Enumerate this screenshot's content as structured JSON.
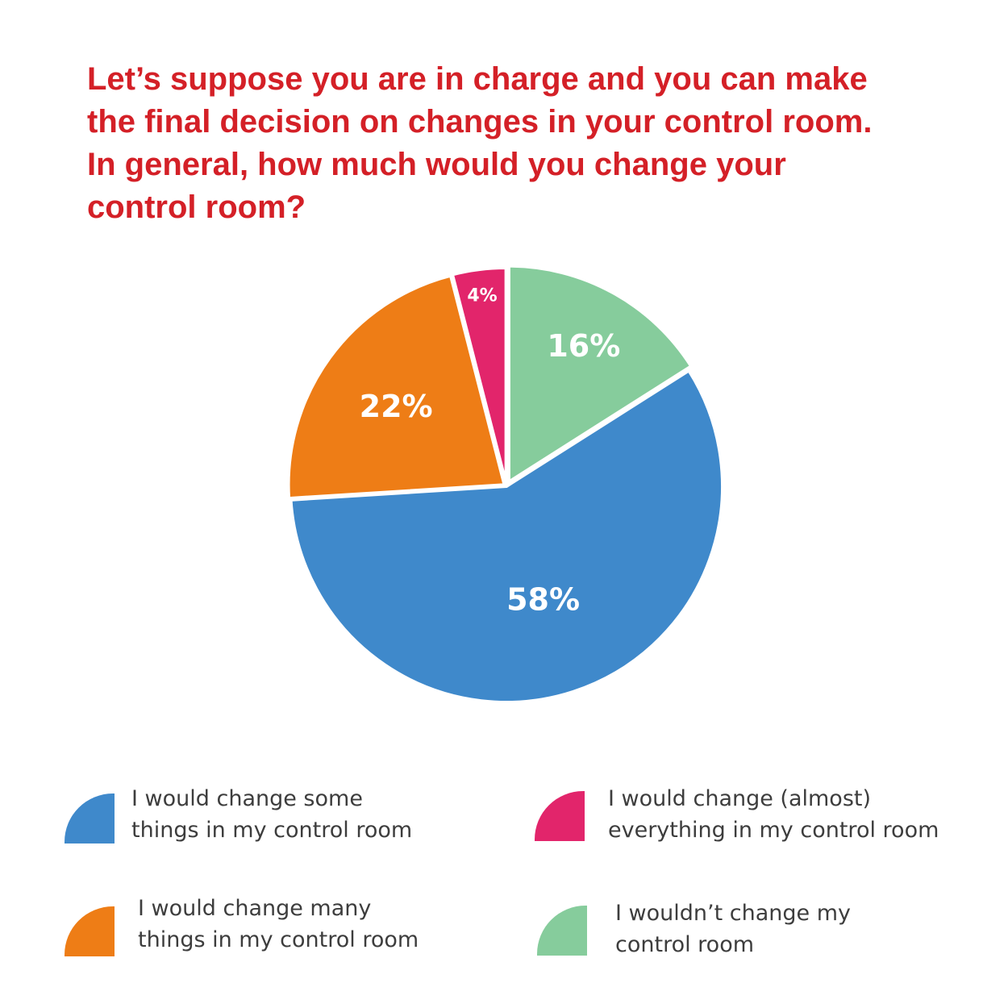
{
  "chart_data": {
    "type": "pie",
    "title_lines": [
      "Let’s suppose you are in charge and you can make",
      "the final decision on changes in your control room.",
      "In general, how much would you change your",
      "control room?"
    ],
    "slices": [
      {
        "label": "I wouldn’t change my control room",
        "label_lines": [
          "I wouldn’t change my",
          "control room"
        ],
        "value": 16,
        "value_label": "16%",
        "color": "#86cc9c"
      },
      {
        "label": "I would change some things in my control room",
        "label_lines": [
          "I would change some",
          "things in my control room"
        ],
        "value": 58,
        "value_label": "58%",
        "color": "#3f89cb"
      },
      {
        "label": "I would change many things in my control room",
        "label_lines": [
          "I would change many",
          "things in my control room"
        ],
        "value": 22,
        "value_label": "22%",
        "color": "#ee7d16"
      },
      {
        "label": "I would change (almost) everything in my control room",
        "label_lines": [
          "I would change (almost)",
          "everything in my control room"
        ],
        "value": 4,
        "value_label": "4%",
        "color": "#e2256b"
      }
    ],
    "legend_order": [
      1,
      3,
      2,
      0
    ],
    "legend_position": "bottom"
  }
}
